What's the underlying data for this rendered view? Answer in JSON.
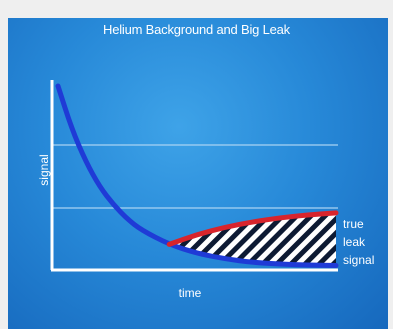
{
  "chart_data": {
    "type": "line",
    "title": "Helium Background and Big Leak",
    "xlabel": "time",
    "ylabel": "signal",
    "grid": true,
    "annotation": [
      "true",
      "leak",
      "signal"
    ],
    "series": [
      {
        "color": "#1f3bd6",
        "x": [
          0,
          5,
          10,
          15,
          20,
          25,
          30,
          40,
          50,
          60,
          70,
          80,
          90,
          100
        ],
        "y": [
          100,
          76,
          58,
          44,
          34,
          26,
          20,
          12,
          7,
          4,
          2,
          1,
          0.5,
          0.3
        ]
      },
      {
        "color": "#d8242c",
        "x": [
          40,
          50,
          60,
          70,
          80,
          90,
          100
        ],
        "y": [
          12,
          17.5,
          21.5,
          24.5,
          26.8,
          28.4,
          29.5
        ]
      }
    ],
    "colors": {
      "background": "#2789d8",
      "axis": "#ffffff",
      "grid": "#a9d3f3",
      "hatch_fill": "#0d1a33"
    }
  }
}
